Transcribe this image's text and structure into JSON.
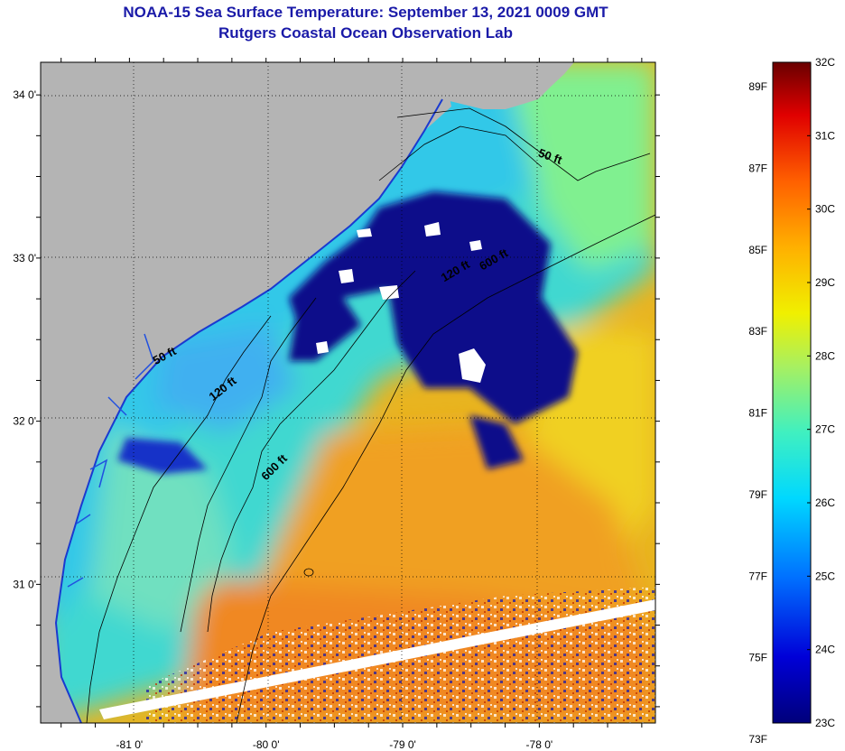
{
  "header": {
    "title": "NOAA-15 Sea Surface Temperature:  September 13, 2021 0009 GMT",
    "subtitle": "Rutgers Coastal Ocean Observation Lab"
  },
  "map": {
    "lat_ticks": [
      {
        "value": 34,
        "label": "34 0'"
      },
      {
        "value": 33,
        "label": "33 0'"
      },
      {
        "value": 32,
        "label": "32 0'"
      },
      {
        "value": 31,
        "label": "31 0'"
      }
    ],
    "lon_ticks": [
      {
        "value": -81,
        "label": "-81 0'"
      },
      {
        "value": -80,
        "label": "-80 0'"
      },
      {
        "value": -79,
        "label": "-79 0'"
      },
      {
        "value": -78,
        "label": "-78 0'"
      }
    ],
    "lat_range": [
      30.15,
      34.2
    ],
    "lon_range": [
      -81.65,
      -77.15
    ],
    "contour_labels": [
      {
        "text": "50 ft",
        "lon": -77.93,
        "lat": 33.6
      },
      {
        "text": "50 ft",
        "lon": -80.73,
        "lat": 32.38
      },
      {
        "text": "120 ft",
        "lon": -80.3,
        "lat": 32.18
      },
      {
        "text": "120 ft",
        "lon": -78.6,
        "lat": 32.9
      },
      {
        "text": "600 ft",
        "lon": -78.32,
        "lat": 32.97
      },
      {
        "text": "600 ft",
        "lon": -79.92,
        "lat": 31.7
      }
    ],
    "colors": {
      "land": "#b4b4b4",
      "cloud": "#ffffff",
      "contour": "#000000",
      "grid": "#000000"
    }
  },
  "colorbar": {
    "fahrenheit_labels": [
      "89F",
      "87F",
      "85F",
      "83F",
      "81F",
      "79F",
      "77F",
      "75F",
      "73F"
    ],
    "celsius_labels": [
      "32C",
      "31C",
      "30C",
      "29C",
      "28C",
      "27C",
      "26C",
      "25C",
      "24C",
      "23C"
    ],
    "range_c": [
      23,
      32
    ]
  }
}
